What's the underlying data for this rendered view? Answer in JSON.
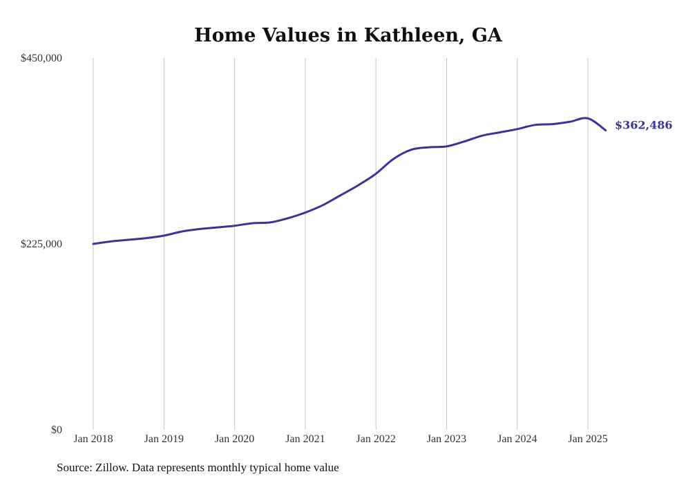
{
  "chart_data": {
    "type": "line",
    "title": "Home Values in Kathleen, GA",
    "xlabel": "",
    "ylabel": "",
    "ylim": [
      0,
      450000
    ],
    "y_ticks": [
      {
        "value": 0,
        "label": "$0"
      },
      {
        "value": 225000,
        "label": "$225,000"
      },
      {
        "value": 450000,
        "label": "$450,000"
      }
    ],
    "x_ticks": [
      {
        "value": 2018,
        "label": "Jan 2018"
      },
      {
        "value": 2019,
        "label": "Jan 2019"
      },
      {
        "value": 2020,
        "label": "Jan 2020"
      },
      {
        "value": 2021,
        "label": "Jan 2021"
      },
      {
        "value": 2022,
        "label": "Jan 2022"
      },
      {
        "value": 2023,
        "label": "Jan 2023"
      },
      {
        "value": 2024,
        "label": "Jan 2024"
      },
      {
        "value": 2025,
        "label": "Jan 2025"
      }
    ],
    "xlim": [
      2018,
      2025.25
    ],
    "grid": "vertical",
    "legend": "none",
    "line_color": "#3a3496",
    "series": [
      {
        "x": [
          2018.0,
          2018.25,
          2018.5,
          2018.75,
          2019.0,
          2019.25,
          2019.5,
          2019.75,
          2020.0,
          2020.25,
          2020.5,
          2020.75,
          2021.0,
          2021.25,
          2021.5,
          2021.75,
          2022.0,
          2022.25,
          2022.5,
          2022.75,
          2023.0,
          2023.25,
          2023.5,
          2023.75,
          2024.0,
          2024.25,
          2024.5,
          2024.75,
          2025.0,
          2025.25
        ],
        "y": [
          225000,
          228000,
          230000,
          232000,
          235000,
          240000,
          243000,
          245000,
          247000,
          250000,
          251000,
          256000,
          263000,
          272000,
          284000,
          296000,
          310000,
          328000,
          339000,
          342000,
          343000,
          349000,
          356000,
          360000,
          364000,
          369000,
          370000,
          373000,
          377000,
          362486
        ]
      }
    ],
    "end_label": "$362,486"
  },
  "source_note": "Source: Zillow. Data represents monthly typical home value"
}
